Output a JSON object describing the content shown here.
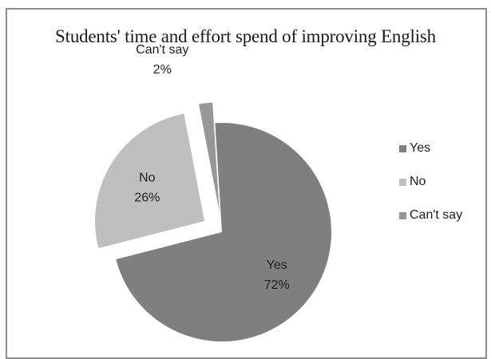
{
  "chart_data": {
    "type": "pie",
    "title": "Students' time and effort spend of improving English",
    "categories": [
      "Yes",
      "No",
      "Can't say"
    ],
    "values": [
      72,
      26,
      2
    ],
    "slice_labels": [
      {
        "name": "Yes",
        "percent": "72%"
      },
      {
        "name": "No",
        "percent": "26%"
      },
      {
        "name": "Can't say",
        "percent": "2%"
      }
    ],
    "colors": [
      "#7f7f7f",
      "#bfbfbf",
      "#979797"
    ],
    "exploded": [
      "No",
      "Can't say"
    ],
    "legend": {
      "position": "right",
      "items": [
        "Yes",
        "No",
        "Can't say"
      ]
    }
  }
}
